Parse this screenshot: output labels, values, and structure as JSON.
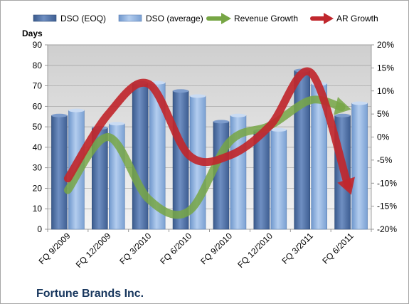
{
  "company": "Fortune Brands Inc.",
  "chart_data": {
    "type": "bar",
    "title": "",
    "ylabel": "Days",
    "ylim": [
      0,
      90
    ],
    "yticks": [
      0,
      10,
      20,
      30,
      40,
      50,
      60,
      70,
      80,
      90
    ],
    "y2lim": [
      -20,
      20
    ],
    "y2ticks": [
      "-20%",
      "-15%",
      "-10%",
      "-5%",
      "0%",
      "5%",
      "10%",
      "15%",
      "20%"
    ],
    "y2values": [
      -20,
      -15,
      -10,
      -5,
      0,
      5,
      10,
      15,
      20
    ],
    "categories": [
      "FQ 9/2009",
      "FQ 12/2009",
      "FQ 3/2010",
      "FQ 6/2010",
      "FQ 9/2010",
      "FQ 12/2010",
      "FQ 3/2011",
      "FQ 6/2011"
    ],
    "series": [
      {
        "name": "DSO (EOQ)",
        "type": "bar",
        "axis": "left",
        "color": "#4f6fa3",
        "values": [
          55.5,
          49.5,
          71.5,
          67.5,
          52.5,
          48,
          77.5,
          55.5
        ]
      },
      {
        "name": "DSO (average)",
        "type": "bar",
        "axis": "left",
        "color": "#8db3e2",
        "values": [
          58,
          51.5,
          71.5,
          65,
          55.5,
          48.5,
          71,
          61.5
        ]
      },
      {
        "name": "Revenue Growth",
        "type": "line-arrow",
        "axis": "right",
        "color": "#77a645",
        "values": [
          -11.5,
          0,
          -13.5,
          -16,
          -1,
          2.5,
          8,
          6
        ]
      },
      {
        "name": "AR Growth",
        "type": "line-arrow",
        "axis": "right",
        "color": "#c0272d",
        "values": [
          -9,
          5,
          11.5,
          -4,
          -4,
          2.5,
          14,
          -12.5
        ]
      }
    ],
    "grid": true,
    "legend": "top"
  }
}
